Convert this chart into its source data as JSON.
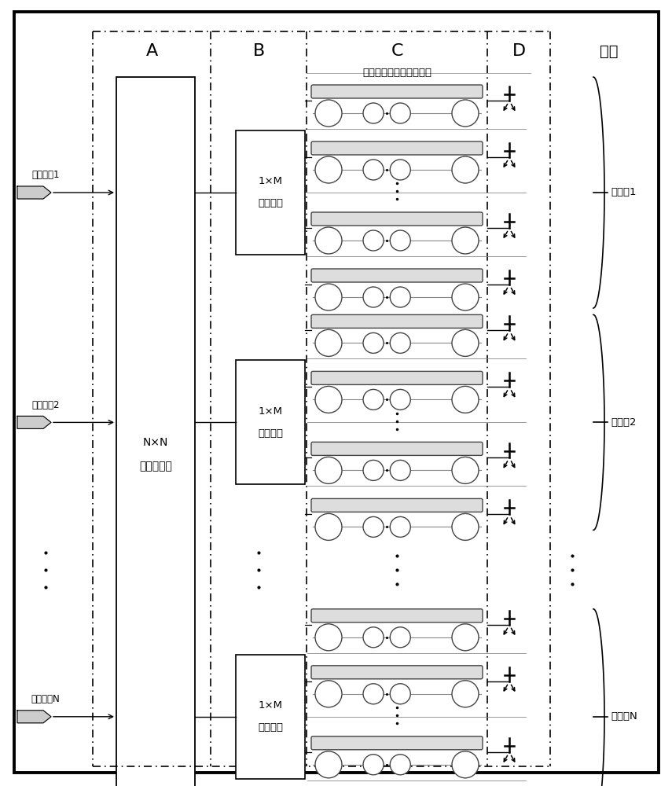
{
  "fig_width": 8.55,
  "fig_height": 10.0,
  "bg_color": "#ffffff",
  "chip_label": "片上",
  "section_labels": [
    "A",
    "B",
    "C",
    "D"
  ],
  "splitter_line1": "1×M",
  "splitter_line2": "光分路器",
  "nxn_line1": "N×N",
  "nxn_line2": "光开关阵列",
  "section_C_label": "超宽带微波光子延时单元",
  "fiber_labels": [
    "光纤输入1",
    "光纤输入2",
    "光纤输入N"
  ],
  "subarray_labels": [
    "子阵列1",
    "子阵列2",
    "子阵列N"
  ]
}
